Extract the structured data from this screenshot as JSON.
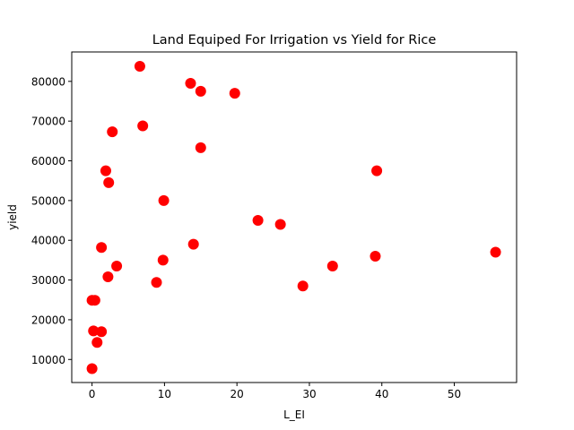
{
  "chart_data": {
    "type": "scatter",
    "title": "Land Equiped For Irrigation vs Yield for Rice",
    "xlabel": "L_EI",
    "ylabel": "yield",
    "xlim": [
      -2.8,
      58.6
    ],
    "ylim": [
      4200,
      87400
    ],
    "xticks": [
      0,
      10,
      20,
      30,
      40,
      50
    ],
    "yticks": [
      10000,
      20000,
      30000,
      40000,
      50000,
      60000,
      70000,
      80000
    ],
    "grid": false,
    "marker_color": "#ff0000",
    "points": [
      {
        "x": 6.6,
        "y": 83800
      },
      {
        "x": 13.6,
        "y": 79500
      },
      {
        "x": 15.0,
        "y": 77500
      },
      {
        "x": 19.7,
        "y": 77000
      },
      {
        "x": 7.0,
        "y": 68800
      },
      {
        "x": 2.8,
        "y": 67300
      },
      {
        "x": 15.0,
        "y": 63300
      },
      {
        "x": 1.9,
        "y": 57500
      },
      {
        "x": 39.3,
        "y": 57500
      },
      {
        "x": 2.3,
        "y": 54500
      },
      {
        "x": 9.9,
        "y": 50000
      },
      {
        "x": 22.9,
        "y": 45000
      },
      {
        "x": 26.0,
        "y": 44000
      },
      {
        "x": 14.0,
        "y": 39000
      },
      {
        "x": 1.3,
        "y": 38200
      },
      {
        "x": 55.7,
        "y": 37000
      },
      {
        "x": 39.1,
        "y": 36000
      },
      {
        "x": 9.8,
        "y": 35000
      },
      {
        "x": 3.4,
        "y": 33500
      },
      {
        "x": 33.2,
        "y": 33500
      },
      {
        "x": 2.2,
        "y": 30800
      },
      {
        "x": 8.9,
        "y": 29400
      },
      {
        "x": 29.1,
        "y": 28500
      },
      {
        "x": 0.0,
        "y": 24900
      },
      {
        "x": 0.4,
        "y": 24900
      },
      {
        "x": 0.2,
        "y": 17200
      },
      {
        "x": 1.3,
        "y": 17000
      },
      {
        "x": 0.7,
        "y": 14300
      },
      {
        "x": 0.0,
        "y": 7700
      }
    ]
  }
}
